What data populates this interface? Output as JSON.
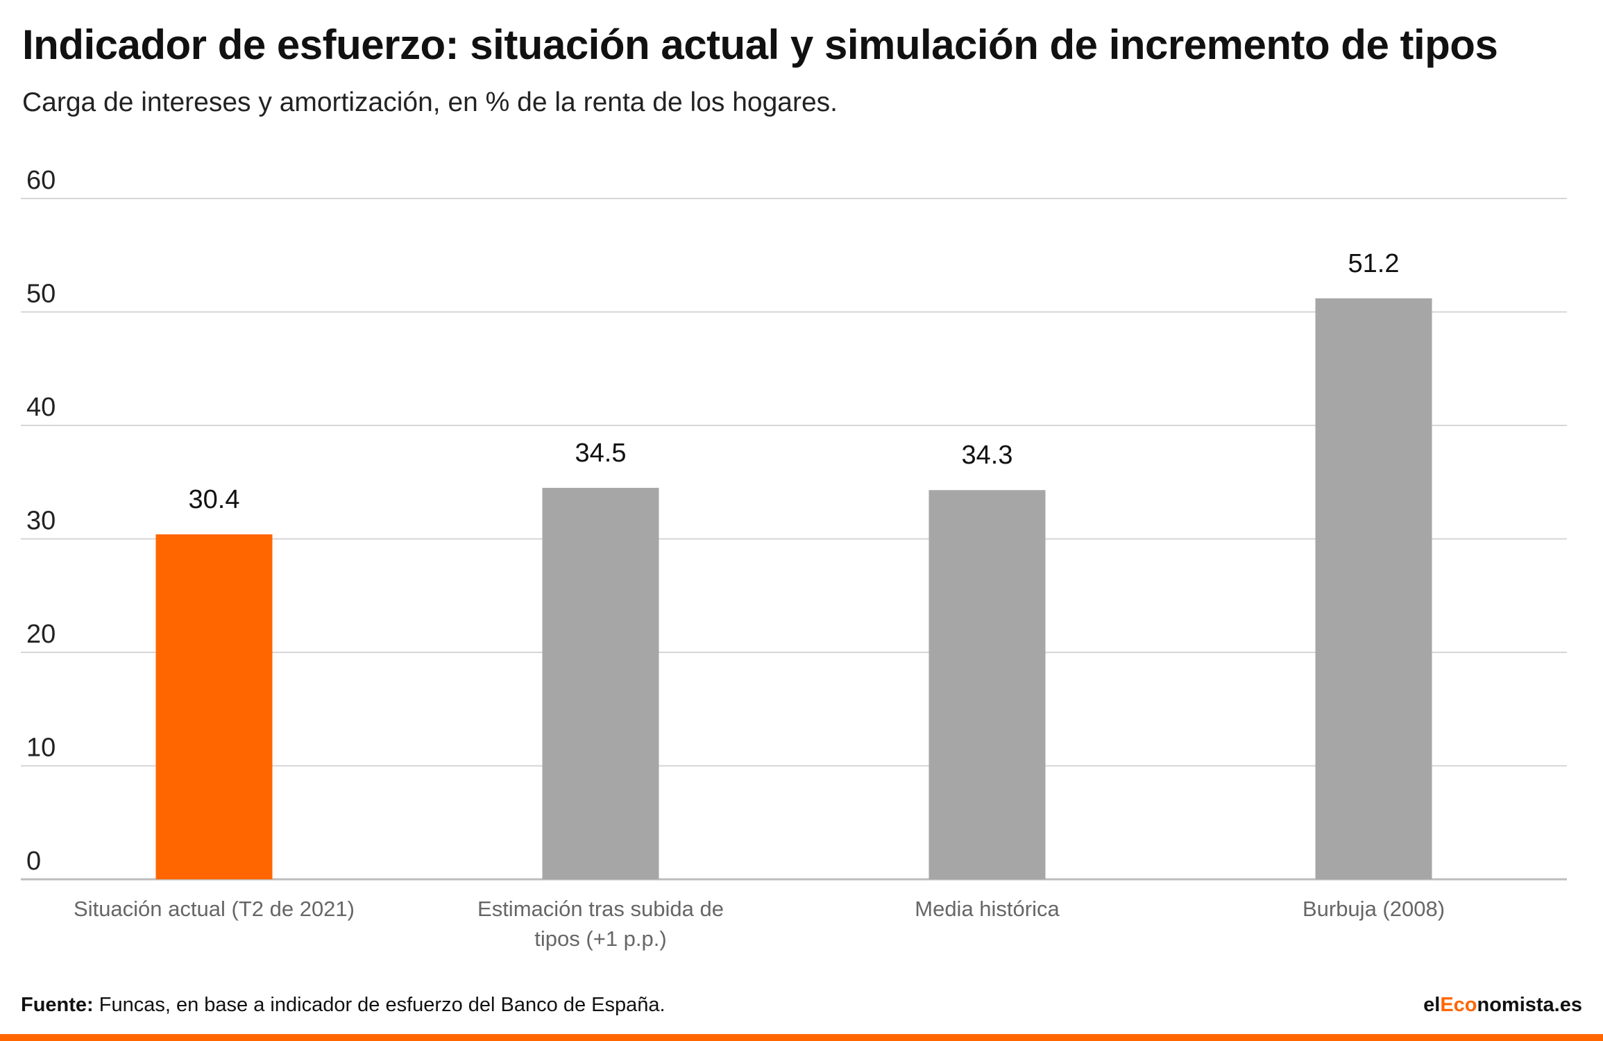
{
  "title": "Indicador de esfuerzo: situación actual y simulación de incremento de tipos",
  "subtitle": "Carga de intereses y amortización, en % de la renta de los hogares.",
  "chart_data": {
    "type": "bar",
    "categories": [
      "Situación actual (T2 de 2021)",
      "Estimación tras subida de tipos (+1 p.p.)",
      "Media histórica",
      "Burbuja (2008)"
    ],
    "category_lines": [
      [
        "Situación actual (T2 de 2021)"
      ],
      [
        "Estimación tras subida de",
        "tipos (+1 p.p.)"
      ],
      [
        "Media histórica"
      ],
      [
        "Burbuja (2008)"
      ]
    ],
    "values": [
      30.4,
      34.5,
      34.3,
      51.2
    ],
    "value_labels": [
      "30.4",
      "34.5",
      "34.3",
      "51.2"
    ],
    "colors": [
      "#ff6600",
      "#a6a6a6",
      "#a6a6a6",
      "#a6a6a6"
    ],
    "ylim": [
      0,
      60
    ],
    "yticks": [
      0,
      10,
      20,
      30,
      40,
      50,
      60
    ],
    "grid": true,
    "legend": "none",
    "xlabel": "",
    "ylabel": ""
  },
  "footer": {
    "source_label": "Fuente:",
    "source_text": " Funcas, en base a indicador de esfuerzo del Banco de España.",
    "brand_prefix": "el",
    "brand_accent": "Eco",
    "brand_suffix": "nomista.es",
    "accent_color": "#ff6600"
  }
}
